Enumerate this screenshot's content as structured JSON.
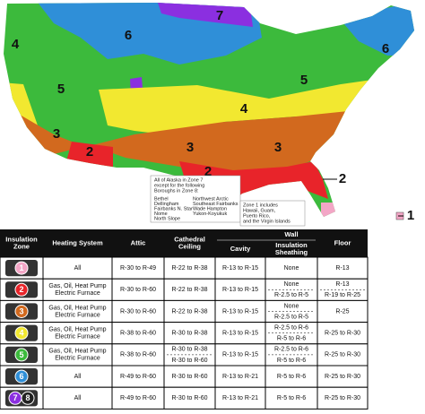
{
  "map": {
    "zone_labels": [
      "7",
      "6",
      "4",
      "5",
      "6",
      "5",
      "4",
      "3",
      "2",
      "3",
      "3",
      "2",
      "2",
      "1"
    ],
    "alaska_note": [
      "All of Alaska in Zone 7",
      "except for the following",
      "Boroughs in Zone 8:"
    ],
    "boroughs_left": [
      "Bethel",
      "Dellingham",
      "Fairbanks N. Star",
      "Nome",
      "North Slope"
    ],
    "boroughs_right": [
      "Northwest Arctic",
      "Southeast Fairbanks",
      "Wade Hampton",
      "Yukon-Koyukuk"
    ],
    "zone1_note": [
      "Zone 1 includes",
      "Hawaii, Guam,",
      "Puerto Rico,",
      "and the Virgin Islands"
    ]
  },
  "table": {
    "header": {
      "zone": [
        "Insulation",
        "Zone"
      ],
      "heating": [
        "Heating System"
      ],
      "attic": [
        "Attic"
      ],
      "ceiling": [
        "Cathedral",
        "Ceiling"
      ],
      "wall": "Wall",
      "cavity": [
        "Cavity"
      ],
      "sheathing": [
        "Insulation",
        "Sheathing"
      ],
      "floor": [
        "Floor"
      ]
    },
    "rows": [
      {
        "zone": [
          "1"
        ],
        "colors": [
          "#f3a6c6"
        ],
        "heating": [
          "All"
        ],
        "attic": [
          "R-30 to R-49"
        ],
        "ceiling": [
          "R-22 to R-38"
        ],
        "cavity": [
          "R-13 to R-15"
        ],
        "sheathing": [
          "None"
        ],
        "floor": [
          "R-13"
        ]
      },
      {
        "zone": [
          "2"
        ],
        "colors": [
          "#e8242a"
        ],
        "heating": [
          "Gas, Oil, Heat Pump",
          "Electric Furnace"
        ],
        "attic": [
          "R-30 to R-60"
        ],
        "ceiling": [
          "R-22 to R-38"
        ],
        "cavity": [
          "R-13 to R-15"
        ],
        "sheathing": [
          "None",
          "R-2.5 to R-5"
        ],
        "floor": [
          "R-13",
          "R-19 to R-25"
        ]
      },
      {
        "zone": [
          "3"
        ],
        "colors": [
          "#d2691e"
        ],
        "heating": [
          "Gas, Oil, Heat Pump",
          "Electric Furnace"
        ],
        "attic": [
          "R-30 to R-60"
        ],
        "ceiling": [
          "R-22 to R-38"
        ],
        "cavity": [
          "R-13 to R-15"
        ],
        "sheathing": [
          "None",
          "R-2.5 to R-5"
        ],
        "floor": [
          "R-25"
        ]
      },
      {
        "zone": [
          "4"
        ],
        "colors": [
          "#f2e830"
        ],
        "heating": [
          "Gas, Oil, Heat Pump",
          "Electric Furnace"
        ],
        "attic": [
          "R-38 to R-60"
        ],
        "ceiling": [
          "R-30 to R-38"
        ],
        "cavity": [
          "R-13 to R-15"
        ],
        "sheathing": [
          "R-2.5 to R-6",
          "R-5 to R-6"
        ],
        "floor": [
          "R-25 to R-30"
        ]
      },
      {
        "zone": [
          "5"
        ],
        "colors": [
          "#3cba3c"
        ],
        "heating": [
          "Gas, Oil, Heat Pump",
          "Electric Furnace"
        ],
        "attic": [
          "R-38 to R-60"
        ],
        "ceiling": [
          "R-30 to R-38",
          "R-30 to R-60"
        ],
        "cavity": [
          "R-13 to R-15"
        ],
        "sheathing": [
          "R-2.5 to R-6",
          "R-5 to R-6"
        ],
        "floor": [
          "R-25 to R-30"
        ]
      },
      {
        "zone": [
          "6"
        ],
        "colors": [
          "#2f8fd8"
        ],
        "heating": [
          "All"
        ],
        "attic": [
          "R-49 to R-60"
        ],
        "ceiling": [
          "R-30 to R-60"
        ],
        "cavity": [
          "R-13 to R-21"
        ],
        "sheathing": [
          "R-5 to R-6"
        ],
        "floor": [
          "R-25 to R-30"
        ]
      },
      {
        "zone": [
          "7",
          "8"
        ],
        "colors": [
          "#8b2fe0",
          "#222222"
        ],
        "heating": [
          "All"
        ],
        "attic": [
          "R-49 to R-60"
        ],
        "ceiling": [
          "R-30 to R-60"
        ],
        "cavity": [
          "R-13 to R-21"
        ],
        "sheathing": [
          "R-5 to R-6"
        ],
        "floor": [
          "R-25 to R-30"
        ]
      }
    ]
  }
}
